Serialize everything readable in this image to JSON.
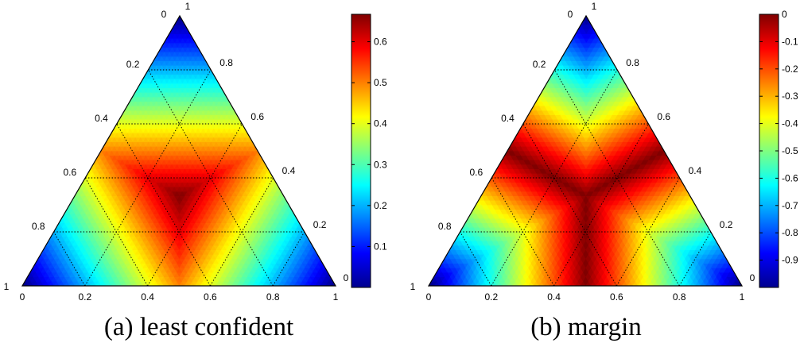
{
  "chart_data": [
    {
      "type": "heatmap",
      "subtype": "ternary",
      "caption": "(a) least confident",
      "corner_labels": {
        "bottom_left": "1",
        "top": [
          "0",
          "1"
        ],
        "bottom_right": "0"
      },
      "bottom_axis_ticks": [
        "0",
        "0.2",
        "0.4",
        "0.6",
        "0.8",
        "1"
      ],
      "left_axis_ticks": [
        "0.2",
        "0.4",
        "0.6",
        "0.8"
      ],
      "right_axis_ticks": [
        "0.8",
        "0.6",
        "0.4",
        "0.2"
      ],
      "grid": "dotted",
      "colormap": "jet",
      "colorbar": {
        "range": [
          0,
          0.667
        ],
        "ticks": [
          "0.1",
          "0.2",
          "0.3",
          "0.4",
          "0.5",
          "0.6"
        ],
        "tick_values": [
          0.1,
          0.2,
          0.3,
          0.4,
          0.5,
          0.6
        ]
      }
    },
    {
      "type": "heatmap",
      "subtype": "ternary",
      "caption": "(b) margin",
      "corner_labels": {
        "bottom_left": "1",
        "top": [
          "0",
          "1"
        ],
        "bottom_right": "0"
      },
      "bottom_axis_ticks": [
        "0",
        "0.2",
        "0.4",
        "0.6",
        "0.8",
        "1"
      ],
      "left_axis_ticks": [
        "0.2",
        "0.4",
        "0.6",
        "0.8"
      ],
      "right_axis_ticks": [
        "0.8",
        "0.6",
        "0.4",
        "0.2"
      ],
      "grid": "dotted",
      "colormap": "jet",
      "colorbar": {
        "range": [
          -1,
          0
        ],
        "ticks": [
          "0",
          "-0.1",
          "-0.2",
          "-0.3",
          "-0.4",
          "-0.5",
          "-0.6",
          "-0.7",
          "-0.8",
          "-0.9"
        ],
        "tick_values": [
          0,
          -0.1,
          -0.2,
          -0.3,
          -0.4,
          -0.5,
          -0.6,
          -0.7,
          -0.8,
          -0.9
        ]
      }
    }
  ]
}
